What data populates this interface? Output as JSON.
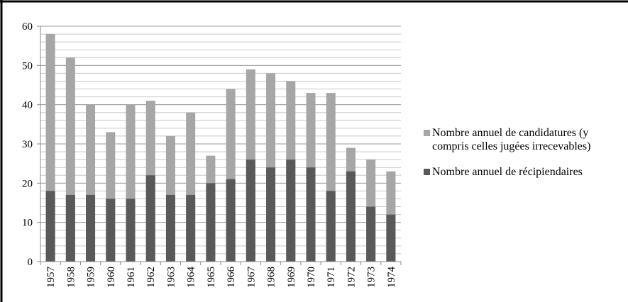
{
  "chart_data": {
    "type": "bar",
    "categories": [
      "1957",
      "1958",
      "1959",
      "1960",
      "1961",
      "1962",
      "1963",
      "1964",
      "1965",
      "1966",
      "1967",
      "1968",
      "1969",
      "1970",
      "1971",
      "1972",
      "1973",
      "1974"
    ],
    "series": [
      {
        "name": "Nombre annuel de candidatures (y compris celles jugées irrecevables)",
        "color": "#a6a6a6",
        "values": [
          58,
          52,
          40,
          33,
          40,
          41,
          32,
          38,
          27,
          44,
          49,
          48,
          46,
          43,
          43,
          29,
          26,
          23
        ]
      },
      {
        "name": "Nombre annuel de récipiendaires",
        "color": "#595959",
        "values": [
          18,
          17,
          17,
          16,
          16,
          22,
          17,
          17,
          20,
          21,
          26,
          24,
          26,
          24,
          18,
          23,
          14,
          12
        ]
      }
    ],
    "ylim": [
      0,
      60
    ],
    "yticks": [
      0,
      10,
      20,
      30,
      40,
      50,
      60
    ],
    "grid": true,
    "minor_grid_step": 2,
    "legend": "right"
  }
}
